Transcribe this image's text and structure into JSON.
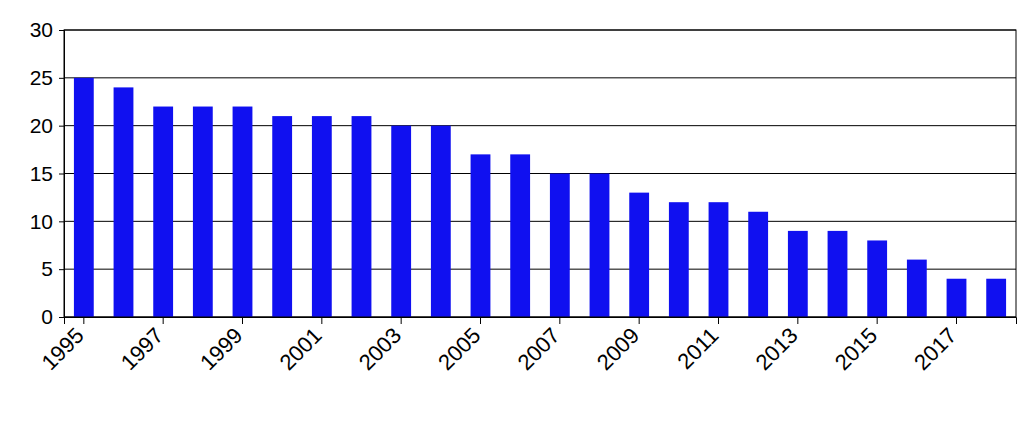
{
  "chart_data": {
    "type": "bar",
    "categories": [
      "1995",
      null,
      "1997",
      null,
      "1999",
      null,
      "2001",
      null,
      "2003",
      null,
      "2005",
      null,
      "2007",
      null,
      "2009",
      null,
      "2011",
      null,
      "2013",
      null,
      "2015",
      null,
      "2017",
      null
    ],
    "values": [
      25,
      24,
      22,
      22,
      22,
      21,
      21,
      21,
      20,
      20,
      17,
      17,
      15,
      15,
      13,
      12,
      12,
      11,
      9,
      9,
      8,
      6,
      4,
      4
    ],
    "color": "#1010f0",
    "ylim": [
      0,
      30
    ],
    "yticks": [
      0,
      5,
      10,
      15,
      20,
      25,
      30
    ],
    "grid": true
  }
}
